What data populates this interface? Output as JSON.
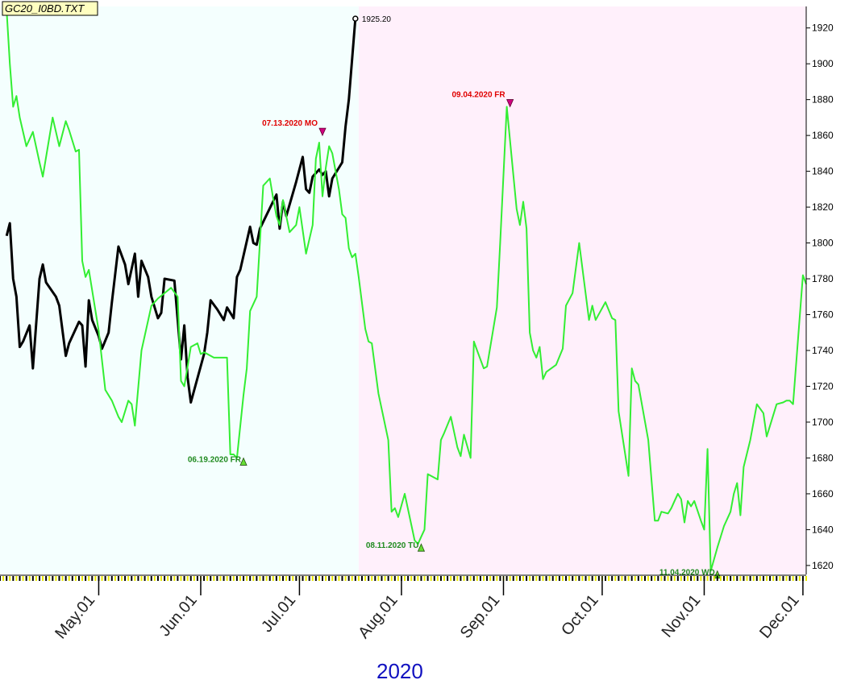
{
  "title": "GC20_I0BD.TXT",
  "year_label": "2020",
  "chart_data": {
    "type": "line",
    "ylim": [
      1615,
      1932
    ],
    "y_ticks": [
      1620,
      1640,
      1660,
      1680,
      1700,
      1720,
      1740,
      1760,
      1780,
      1800,
      1820,
      1840,
      1860,
      1880,
      1900,
      1920
    ],
    "month_ticks": [
      {
        "label": "May.01",
        "day": 30
      },
      {
        "label": "Jun.01",
        "day": 61
      },
      {
        "label": "Jul.01",
        "day": 91
      },
      {
        "label": "Aug.01",
        "day": 122
      },
      {
        "label": "Sep.01",
        "day": 153
      },
      {
        "label": "Oct.01",
        "day": 183
      },
      {
        "label": "Nov.01",
        "day": 214
      },
      {
        "label": "Dec.01",
        "day": 244
      }
    ],
    "x_range_days": [
      0,
      245
    ],
    "shade_regions": [
      {
        "from_day": 0,
        "to_day": 109,
        "color": "#f4fffe"
      },
      {
        "from_day": 109,
        "to_day": 245,
        "color": "#fff0fb"
      }
    ],
    "series": [
      {
        "color": "#000000",
        "points": [
          [
            2,
            1804
          ],
          [
            3,
            1811
          ],
          [
            4,
            1780
          ],
          [
            5,
            1770
          ],
          [
            6,
            1742
          ],
          [
            7,
            1745
          ],
          [
            9,
            1754
          ],
          [
            10,
            1730
          ],
          [
            12,
            1780
          ],
          [
            13,
            1788
          ],
          [
            14,
            1778
          ],
          [
            17,
            1770
          ],
          [
            18,
            1765
          ],
          [
            20,
            1737
          ],
          [
            21,
            1744
          ],
          [
            24,
            1756
          ],
          [
            25,
            1754
          ],
          [
            26,
            1731
          ],
          [
            27,
            1768
          ],
          [
            28,
            1757
          ],
          [
            30,
            1748
          ],
          [
            31,
            1741
          ],
          [
            33,
            1750
          ],
          [
            34,
            1767
          ],
          [
            36,
            1798
          ],
          [
            38,
            1788
          ],
          [
            39,
            1777
          ],
          [
            41,
            1794
          ],
          [
            42,
            1770
          ],
          [
            43,
            1790
          ],
          [
            45,
            1781
          ],
          [
            46,
            1770
          ],
          [
            48,
            1758
          ],
          [
            49,
            1761
          ],
          [
            50,
            1780
          ],
          [
            53,
            1779
          ],
          [
            55,
            1735
          ],
          [
            56,
            1754
          ],
          [
            57,
            1725
          ],
          [
            58,
            1711
          ],
          [
            62,
            1738
          ],
          [
            63,
            1750
          ],
          [
            64,
            1768
          ],
          [
            66,
            1763
          ],
          [
            68,
            1757
          ],
          [
            69,
            1764
          ],
          [
            71,
            1758
          ],
          [
            72,
            1781
          ],
          [
            73,
            1785
          ],
          [
            76,
            1809
          ],
          [
            77,
            1800
          ],
          [
            78,
            1799
          ],
          [
            79,
            1808
          ],
          [
            84,
            1827
          ],
          [
            85,
            1808
          ],
          [
            86,
            1823
          ],
          [
            87,
            1815
          ],
          [
            90,
            1834
          ],
          [
            92,
            1848
          ],
          [
            93,
            1830
          ],
          [
            94,
            1828
          ],
          [
            95,
            1837
          ],
          [
            97,
            1841
          ],
          [
            98,
            1838
          ],
          [
            99,
            1840
          ],
          [
            100,
            1826
          ],
          [
            101,
            1836
          ],
          [
            104,
            1845
          ],
          [
            105,
            1865
          ],
          [
            106,
            1880
          ],
          [
            108,
            1925.2
          ]
        ]
      },
      {
        "color": "#33ee33",
        "points": [
          [
            2,
            1930
          ],
          [
            3,
            1900
          ],
          [
            4,
            1876
          ],
          [
            5,
            1882
          ],
          [
            6,
            1870
          ],
          [
            8,
            1854
          ],
          [
            10,
            1862
          ],
          [
            12,
            1845
          ],
          [
            13,
            1837
          ],
          [
            16,
            1870
          ],
          [
            17,
            1862
          ],
          [
            18,
            1854
          ],
          [
            20,
            1868
          ],
          [
            21,
            1863
          ],
          [
            23,
            1851
          ],
          [
            24,
            1852
          ],
          [
            25,
            1790
          ],
          [
            26,
            1781
          ],
          [
            27,
            1785
          ],
          [
            30,
            1751
          ],
          [
            32,
            1718
          ],
          [
            34,
            1712
          ],
          [
            36,
            1703
          ],
          [
            37,
            1700
          ],
          [
            39,
            1712
          ],
          [
            40,
            1710
          ],
          [
            41,
            1698
          ],
          [
            43,
            1740
          ],
          [
            46,
            1765
          ],
          [
            48,
            1769
          ],
          [
            52,
            1775
          ],
          [
            54,
            1770
          ],
          [
            55,
            1723
          ],
          [
            56,
            1720
          ],
          [
            58,
            1742
          ],
          [
            60,
            1744
          ],
          [
            61,
            1738
          ],
          [
            62,
            1739
          ],
          [
            65,
            1736
          ],
          [
            69,
            1736
          ],
          [
            70,
            1682
          ],
          [
            71,
            1682
          ],
          [
            72,
            1680
          ],
          [
            74,
            1715
          ],
          [
            75,
            1730
          ],
          [
            76,
            1762
          ],
          [
            78,
            1770
          ],
          [
            80,
            1832
          ],
          [
            82,
            1836
          ],
          [
            83,
            1825
          ],
          [
            84,
            1815
          ],
          [
            85,
            1810
          ],
          [
            86,
            1824
          ],
          [
            88,
            1806
          ],
          [
            90,
            1810
          ],
          [
            91,
            1820
          ],
          [
            93,
            1794
          ],
          [
            95,
            1810
          ],
          [
            96,
            1847
          ],
          [
            97,
            1856
          ],
          [
            98,
            1826
          ],
          [
            99,
            1842
          ],
          [
            100,
            1854
          ],
          [
            101,
            1850
          ],
          [
            103,
            1830
          ],
          [
            104,
            1816
          ],
          [
            105,
            1814
          ],
          [
            106,
            1797
          ],
          [
            107,
            1792
          ],
          [
            108,
            1794
          ],
          [
            109,
            1781
          ],
          [
            111,
            1752
          ],
          [
            112,
            1745
          ],
          [
            113,
            1744
          ],
          [
            115,
            1716
          ],
          [
            118,
            1690
          ],
          [
            119,
            1650
          ],
          [
            120,
            1652
          ],
          [
            121,
            1647
          ],
          [
            123,
            1660
          ],
          [
            126,
            1634
          ],
          [
            127,
            1632
          ],
          [
            128,
            1636
          ],
          [
            129,
            1640
          ],
          [
            130,
            1671
          ],
          [
            133,
            1668
          ],
          [
            134,
            1690
          ],
          [
            135,
            1694
          ],
          [
            137,
            1703
          ],
          [
            139,
            1686
          ],
          [
            140,
            1681
          ],
          [
            141,
            1693
          ],
          [
            143,
            1680
          ],
          [
            144,
            1745
          ],
          [
            145,
            1740
          ],
          [
            147,
            1730
          ],
          [
            148,
            1731
          ],
          [
            151,
            1764
          ],
          [
            152,
            1800
          ],
          [
            154,
            1876
          ],
          [
            157,
            1819
          ],
          [
            158,
            1810
          ],
          [
            159,
            1823
          ],
          [
            160,
            1808
          ],
          [
            161,
            1750
          ],
          [
            162,
            1740
          ],
          [
            163,
            1736
          ],
          [
            164,
            1742
          ],
          [
            165,
            1724
          ],
          [
            166,
            1728
          ],
          [
            169,
            1732
          ],
          [
            171,
            1741
          ],
          [
            172,
            1765
          ],
          [
            174,
            1772
          ],
          [
            176,
            1800
          ],
          [
            179,
            1757
          ],
          [
            180,
            1765
          ],
          [
            181,
            1757
          ],
          [
            184,
            1767
          ],
          [
            186,
            1758
          ],
          [
            187,
            1757
          ],
          [
            188,
            1706
          ],
          [
            191,
            1670
          ],
          [
            192,
            1730
          ],
          [
            193,
            1723
          ],
          [
            194,
            1721
          ],
          [
            197,
            1690
          ],
          [
            199,
            1645
          ],
          [
            200,
            1645
          ],
          [
            201,
            1650
          ],
          [
            203,
            1649
          ],
          [
            204,
            1652
          ],
          [
            205,
            1656
          ],
          [
            206,
            1660
          ],
          [
            207,
            1657
          ],
          [
            208,
            1644
          ],
          [
            209,
            1656
          ],
          [
            210,
            1653
          ],
          [
            211,
            1656
          ],
          [
            213,
            1645
          ],
          [
            214,
            1640
          ],
          [
            215,
            1685
          ],
          [
            216,
            1617
          ],
          [
            218,
            1630
          ],
          [
            220,
            1642
          ],
          [
            222,
            1650
          ],
          [
            223,
            1660
          ],
          [
            224,
            1666
          ],
          [
            225,
            1648
          ],
          [
            226,
            1675
          ],
          [
            228,
            1690
          ],
          [
            230,
            1710
          ],
          [
            232,
            1705
          ],
          [
            233,
            1692
          ],
          [
            236,
            1710
          ],
          [
            238,
            1711
          ],
          [
            239,
            1712
          ],
          [
            240,
            1712
          ],
          [
            241,
            1710
          ],
          [
            244,
            1782
          ],
          [
            245,
            1777
          ]
        ]
      }
    ],
    "last_value_label": "1925.20",
    "markers": [
      {
        "day": 74,
        "value": 1680,
        "dir": "up",
        "label": "06.19.2020 FR",
        "color": "#1f8a1f",
        "label_side": "left"
      },
      {
        "day": 98,
        "value": 1860,
        "dir": "down",
        "label": "07.13.2020 MO",
        "color": "#e00000",
        "label_side": "left"
      },
      {
        "day": 128,
        "value": 1632,
        "dir": "up",
        "label": "08.11.2020 TU",
        "color": "#1f8a1f",
        "label_side": "left"
      },
      {
        "day": 155,
        "value": 1876,
        "dir": "down",
        "label": "09.04.2020 FR",
        "color": "#e00000",
        "label_side": "left"
      },
      {
        "day": 218,
        "value": 1617,
        "dir": "up",
        "label": "11.04.2020 WD",
        "color": "#1f8a1f",
        "label_side": "left"
      }
    ]
  }
}
